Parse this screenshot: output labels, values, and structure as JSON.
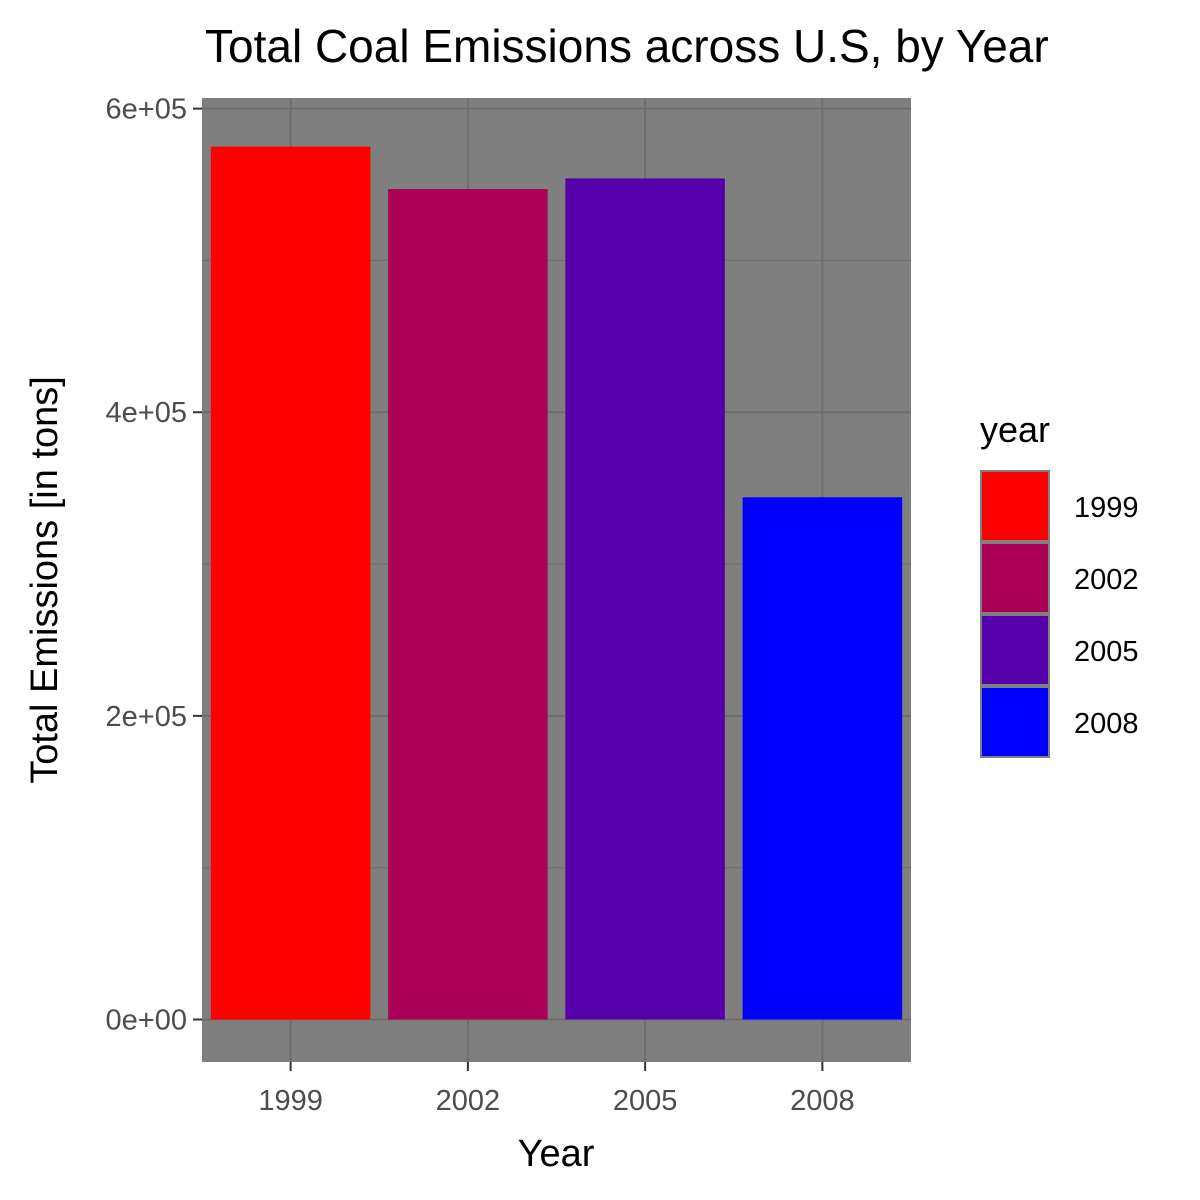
{
  "chart_data": {
    "type": "bar",
    "title": "Total Coal Emissions across U.S, by Year",
    "xlabel": "Year",
    "ylabel": "Total Emissions [in tons]",
    "categories": [
      "1999",
      "2002",
      "2005",
      "2008"
    ],
    "values": [
      575000,
      547000,
      554000,
      344000
    ],
    "colors": [
      "#FF0000",
      "#AA0055",
      "#5500AA",
      "#0000FF"
    ],
    "ylim": [
      -28000,
      607000
    ],
    "yticks": [
      0,
      200000,
      400000,
      600000
    ],
    "ytick_labels": [
      "0e+00",
      "2e+05",
      "4e+05",
      "6e+05"
    ],
    "grid": true,
    "panel_background": "#7f7f7f",
    "grid_color": "#6e6e6e",
    "legend": {
      "title": "year",
      "placement": "right",
      "entries": [
        "1999",
        "2002",
        "2005",
        "2008"
      ]
    }
  }
}
